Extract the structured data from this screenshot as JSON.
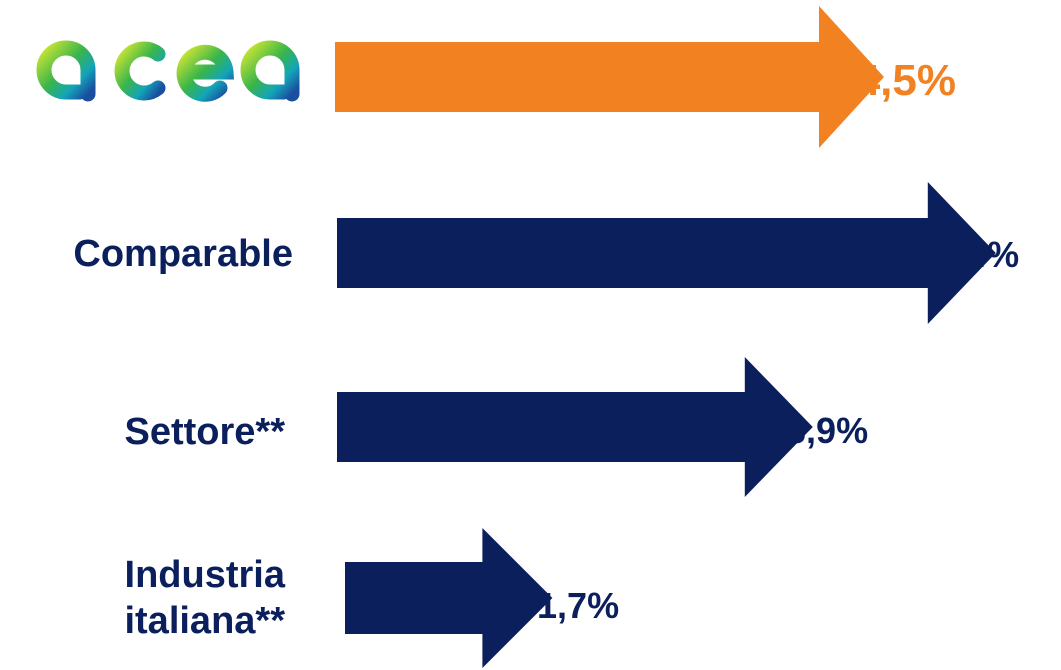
{
  "chart_data": {
    "type": "bar",
    "orientation": "horizontal",
    "categories": [
      "acea",
      "Comparable",
      "Settore**",
      "Industria italiana**"
    ],
    "values": [
      4.5,
      5.4,
      3.9,
      1.7
    ],
    "value_labels": [
      "+4,5%",
      "+5,4%",
      "+3,9%",
      "+1,7%"
    ],
    "unit": "%",
    "category_lines": [
      [
        "acea"
      ],
      [
        "Comparable"
      ],
      [
        "Settore**"
      ],
      [
        "Industria",
        "italiana**"
      ]
    ],
    "colors": [
      "#f28122",
      "#0a1f5c",
      "#0a1f5c",
      "#0a1f5c"
    ],
    "title": "",
    "xlabel": "",
    "ylabel": ""
  },
  "logo": {
    "text": "acea",
    "gradient": [
      "#c9e434",
      "#3ab54a",
      "#13a5b8",
      "#1a4fa0"
    ]
  }
}
